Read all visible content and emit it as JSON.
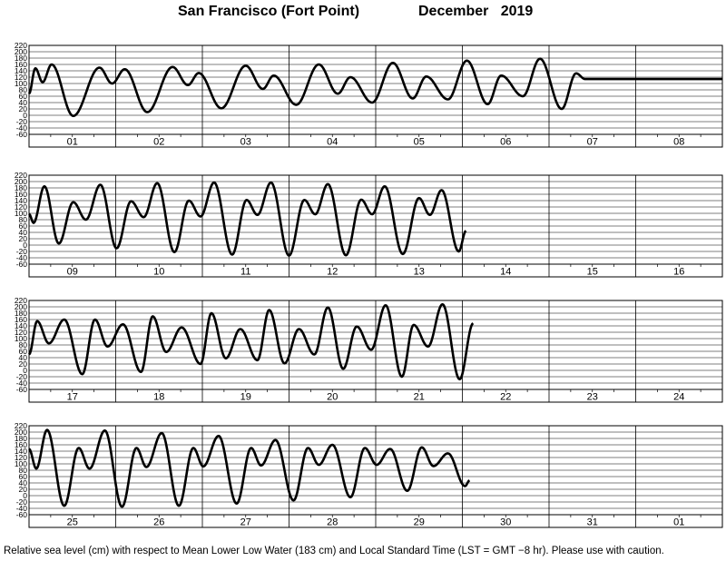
{
  "header": {
    "station": "San Francisco (Fort Point)",
    "period": "December   2019"
  },
  "footer": {
    "note": "Relative sea level (cm) with respect to Mean Lower Low Water (183 cm) and Local Standard Time (LST = GMT −8 hr). Please use with caution."
  },
  "chart_data": {
    "type": "line",
    "title": "San Francisco (Fort Point)   December   2019",
    "ylabel": "Relative sea level (cm)",
    "ylim": [
      -60,
      220
    ],
    "yticks": [
      220,
      200,
      180,
      160,
      140,
      120,
      100,
      80,
      60,
      40,
      20,
      0,
      -20,
      -40,
      -60
    ],
    "grid": true,
    "series_color": "#000000",
    "panels": [
      {
        "days": [
          "01",
          "02",
          "03",
          "04",
          "05",
          "06",
          "07",
          "08"
        ],
        "points": [
          [
            0,
            68
          ],
          [
            1.75,
            148
          ],
          [
            3.75,
            104
          ],
          [
            6.25,
            160
          ],
          [
            12.25,
            -2
          ],
          [
            19.5,
            150
          ],
          [
            23,
            100
          ],
          [
            26.5,
            145
          ],
          [
            32.75,
            10
          ],
          [
            39.75,
            152
          ],
          [
            44,
            95
          ],
          [
            47,
            133
          ],
          [
            53.25,
            22
          ],
          [
            60,
            156
          ],
          [
            64.75,
            83
          ],
          [
            67.75,
            125
          ],
          [
            74,
            33
          ],
          [
            80.25,
            160
          ],
          [
            85.5,
            68
          ],
          [
            89,
            120
          ],
          [
            95,
            40
          ],
          [
            100.75,
            165
          ],
          [
            106.25,
            53
          ],
          [
            110,
            122
          ],
          [
            116,
            50
          ],
          [
            121.25,
            172
          ],
          [
            127,
            35
          ],
          [
            130.75,
            125
          ],
          [
            136.75,
            60
          ],
          [
            141.5,
            178
          ],
          [
            147.5,
            20
          ],
          [
            151.5,
            132
          ],
          [
            154,
            114
          ],
          [
            192,
            114
          ]
        ]
      },
      {
        "days": [
          "09",
          "10",
          "11",
          "12",
          "13",
          "14",
          "15",
          "16"
        ],
        "points": [
          [
            0,
            98
          ],
          [
            1.25,
            70
          ],
          [
            4.25,
            185
          ],
          [
            8.25,
            5
          ],
          [
            12.25,
            135
          ],
          [
            15.75,
            80
          ],
          [
            19.75,
            190
          ],
          [
            24.25,
            -10
          ],
          [
            28.25,
            138
          ],
          [
            31.75,
            88
          ],
          [
            35.5,
            195
          ],
          [
            40.25,
            -22
          ],
          [
            44.25,
            140
          ],
          [
            47.5,
            90
          ],
          [
            51.25,
            197
          ],
          [
            56.25,
            -30
          ],
          [
            60.25,
            142
          ],
          [
            63.25,
            95
          ],
          [
            67,
            197
          ],
          [
            72,
            -33
          ],
          [
            76.25,
            142
          ],
          [
            79.25,
            97
          ],
          [
            82.75,
            192
          ],
          [
            87.75,
            -32
          ],
          [
            92,
            143
          ],
          [
            95,
            97
          ],
          [
            98.5,
            185
          ],
          [
            103.5,
            -28
          ],
          [
            108,
            148
          ],
          [
            111,
            95
          ],
          [
            114.25,
            173
          ],
          [
            119,
            -20
          ],
          [
            121,
            45
          ]
        ]
      },
      {
        "days": [
          "17",
          "18",
          "19",
          "20",
          "21",
          "22",
          "23",
          "24"
        ],
        "points": [
          [
            0,
            50
          ],
          [
            2.25,
            155
          ],
          [
            5.5,
            85
          ],
          [
            9.75,
            160
          ],
          [
            14.75,
            -12
          ],
          [
            18.25,
            160
          ],
          [
            21.75,
            75
          ],
          [
            26,
            145
          ],
          [
            31,
            -5
          ],
          [
            34.25,
            170
          ],
          [
            38,
            58
          ],
          [
            42.25,
            135
          ],
          [
            47.5,
            20
          ],
          [
            50.5,
            180
          ],
          [
            54.5,
            38
          ],
          [
            58.5,
            130
          ],
          [
            63.25,
            32
          ],
          [
            66.5,
            190
          ],
          [
            70.75,
            22
          ],
          [
            74.75,
            130
          ],
          [
            79,
            50
          ],
          [
            82.75,
            198
          ],
          [
            87,
            5
          ],
          [
            90.75,
            138
          ],
          [
            94.75,
            65
          ],
          [
            98.75,
            205
          ],
          [
            103.25,
            -20
          ],
          [
            106.5,
            143
          ],
          [
            110.5,
            75
          ],
          [
            114.5,
            208
          ],
          [
            119.25,
            -28
          ],
          [
            123,
            148
          ]
        ]
      },
      {
        "days": [
          "25",
          "26",
          "27",
          "28",
          "29",
          "30",
          "31",
          "01"
        ],
        "points": [
          [
            0,
            147
          ],
          [
            2,
            85
          ],
          [
            5,
            207
          ],
          [
            9.75,
            -32
          ],
          [
            13.75,
            150
          ],
          [
            16.75,
            85
          ],
          [
            21,
            205
          ],
          [
            25.75,
            -35
          ],
          [
            29.75,
            150
          ],
          [
            32.5,
            90
          ],
          [
            36.75,
            197
          ],
          [
            41.5,
            -32
          ],
          [
            45.5,
            150
          ],
          [
            48.25,
            92
          ],
          [
            52.5,
            188
          ],
          [
            57.5,
            -25
          ],
          [
            61.5,
            150
          ],
          [
            64.25,
            95
          ],
          [
            68.25,
            175
          ],
          [
            73.25,
            -15
          ],
          [
            77.25,
            150
          ],
          [
            80.25,
            97
          ],
          [
            84,
            160
          ],
          [
            89,
            -5
          ],
          [
            93,
            150
          ],
          [
            96.25,
            97
          ],
          [
            100,
            147
          ],
          [
            104.75,
            15
          ],
          [
            108.75,
            152
          ],
          [
            112,
            93
          ],
          [
            116,
            133
          ],
          [
            120.75,
            30
          ],
          [
            122,
            48
          ]
        ]
      }
    ]
  }
}
